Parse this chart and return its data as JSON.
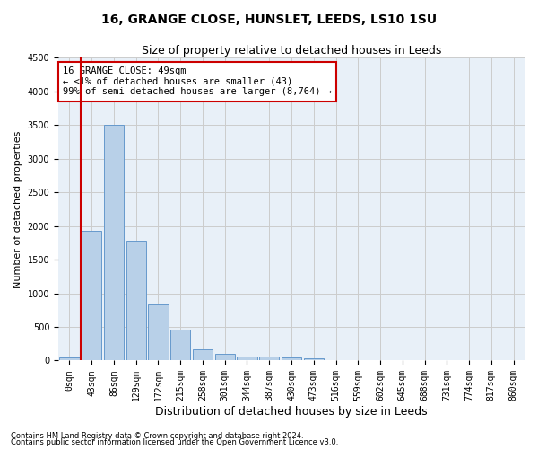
{
  "title": "16, GRANGE CLOSE, HUNSLET, LEEDS, LS10 1SU",
  "subtitle": "Size of property relative to detached houses in Leeds",
  "xlabel": "Distribution of detached houses by size in Leeds",
  "ylabel": "Number of detached properties",
  "footnote1": "Contains HM Land Registry data © Crown copyright and database right 2024.",
  "footnote2": "Contains public sector information licensed under the Open Government Licence v3.0.",
  "bar_labels": [
    "0sqm",
    "43sqm",
    "86sqm",
    "129sqm",
    "172sqm",
    "215sqm",
    "258sqm",
    "301sqm",
    "344sqm",
    "387sqm",
    "430sqm",
    "473sqm",
    "516sqm",
    "559sqm",
    "602sqm",
    "645sqm",
    "688sqm",
    "731sqm",
    "774sqm",
    "817sqm",
    "860sqm"
  ],
  "bar_values": [
    43,
    1930,
    3500,
    1780,
    840,
    460,
    160,
    100,
    60,
    55,
    40,
    30,
    0,
    0,
    0,
    0,
    0,
    0,
    0,
    0,
    0
  ],
  "bar_color": "#b8d0e8",
  "bar_edge_color": "#6699cc",
  "vline_color": "#cc0000",
  "annotation_text": "16 GRANGE CLOSE: 49sqm\n← <1% of detached houses are smaller (43)\n99% of semi-detached houses are larger (8,764) →",
  "annotation_box_color": "#cc0000",
  "ylim": [
    0,
    4500
  ],
  "yticks": [
    0,
    500,
    1000,
    1500,
    2000,
    2500,
    3000,
    3500,
    4000,
    4500
  ],
  "grid_color": "#cccccc",
  "bg_color": "#e8f0f8",
  "title_fontsize": 10,
  "subtitle_fontsize": 9,
  "tick_fontsize": 7,
  "xlabel_fontsize": 9,
  "ylabel_fontsize": 8,
  "annot_fontsize": 7.5
}
